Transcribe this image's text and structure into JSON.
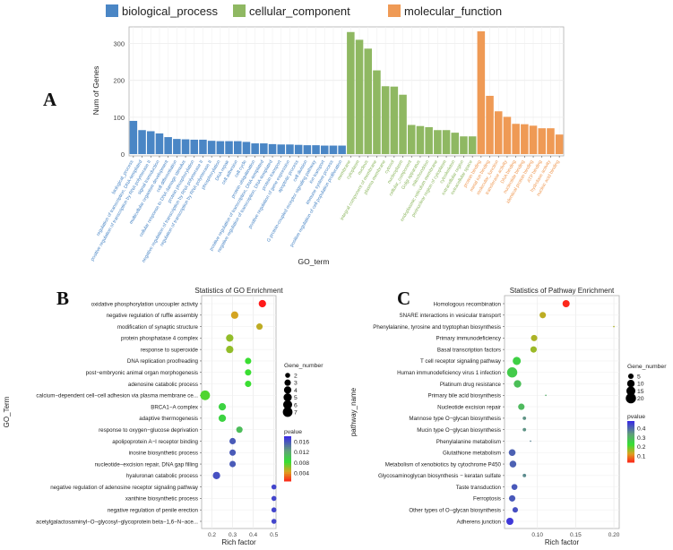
{
  "colors": {
    "biological_process": "#4a86c5",
    "cellular_component": "#8fb862",
    "molecular_function": "#ef9a55",
    "pvalue_low": "#ff1a1a",
    "pvalue_high": "#3b2fe0"
  },
  "chart_data": [
    {
      "panel": "A",
      "type": "bar",
      "legend": [
        "biological_process",
        "cellular_component",
        "molecular_function"
      ],
      "legend_placement": "top",
      "xlabel": "GO_term",
      "ylabel": "Num of Genes",
      "ylim": [
        0,
        345
      ],
      "yticks": [
        0,
        100,
        200,
        300
      ],
      "grid": true,
      "groups": [
        {
          "name": "biological_process",
          "categories": [
            "biological_process",
            "regulation of transcription, DNA-templated",
            "positive regulation of transcription by RNA polymerase II",
            "signal transduction",
            "multicellular organism development",
            "cell differentiation",
            "cellular response to DNA damage stimulus",
            "protein phosphorylation",
            "negative regulation of transcription by RNA polymerase II",
            "regulation of transcription by RNA polymerase II",
            "phosphorylation",
            "DNA repair",
            "cell adhesion",
            "cell cycle",
            "protein ubiquitination",
            "positive regulation of transcription, DNA-templated",
            "negative regulation of transcription, DNA-templated",
            "protein transport",
            "positive regulation of gene expression",
            "apoptotic process",
            "cell division",
            "G protein-coupled receptor signaling pathway",
            "ion transport",
            "immune system process",
            "positive regulation of cell population proliferation"
          ],
          "values": [
            90,
            65,
            62,
            56,
            46,
            41,
            40,
            39,
            39,
            36,
            35,
            35,
            35,
            33,
            29,
            29,
            27,
            26,
            26,
            25,
            24,
            24,
            23,
            23,
            23
          ]
        },
        {
          "name": "cellular_component",
          "categories": [
            "membrane",
            "cytoplasm",
            "nucleus",
            "integral component of membrane",
            "plasma membrane",
            "cytosol",
            "nucleoplasm",
            "cellular_component",
            "Golgi apparatus",
            "mitochondrion",
            "endoplasmic reticulum membrane",
            "perinuclear region of cytoplasm",
            "cytoskeleton",
            "extracellular region",
            "extracellular space"
          ],
          "values": [
            331,
            310,
            286,
            227,
            184,
            183,
            161,
            79,
            76,
            73,
            65,
            65,
            58,
            48,
            48
          ]
        },
        {
          "name": "molecular_function",
          "categories": [
            "protein binding",
            "metal ion binding",
            "molecular_function",
            "transferase activity",
            "DNA binding",
            "nucleotide binding",
            "identical protein binding",
            "ATP binding",
            "hydrolase activity",
            "nucleic acid binding"
          ],
          "values": [
            333,
            158,
            116,
            101,
            82,
            81,
            77,
            70,
            70,
            53
          ]
        }
      ]
    },
    {
      "panel": "B",
      "type": "scatter",
      "title": "Statistics of GO Enrichment",
      "xlabel": "Rich factor",
      "ylabel": "GO_Term",
      "xlim": [
        0.15,
        0.51
      ],
      "xticks": [
        "0.2",
        "0.3",
        "0.4",
        "0.5"
      ],
      "xtick_values": [
        0.2,
        0.3,
        0.4,
        0.5
      ],
      "size_legend": {
        "title": "Gene_number",
        "values": [
          2,
          3,
          4,
          5,
          6,
          7
        ]
      },
      "color_legend": {
        "title": "pvalue",
        "range": [
          0.001,
          0.018
        ],
        "ticks": [
          "0.016",
          "0.012",
          "0.008",
          "0.004"
        ],
        "tick_values": [
          0.016,
          0.012,
          0.008,
          0.004
        ]
      },
      "points": [
        {
          "term": "oxidative phosphorylation uncoupler activity",
          "rich_factor": 0.444,
          "gene_number": 4,
          "pvalue": 0.001
        },
        {
          "term": "negative regulation of ruffle assembly",
          "rich_factor": 0.31,
          "gene_number": 4,
          "pvalue": 0.005
        },
        {
          "term": "modification of synaptic structure",
          "rich_factor": 0.43,
          "gene_number": 3,
          "pvalue": 0.0055
        },
        {
          "term": "protein phosphatase 4 complex",
          "rich_factor": 0.286,
          "gene_number": 4,
          "pvalue": 0.0065
        },
        {
          "term": "response to superoxide",
          "rich_factor": 0.286,
          "gene_number": 4,
          "pvalue": 0.0065
        },
        {
          "term": "DNA replication proofreading",
          "rich_factor": 0.375,
          "gene_number": 3,
          "pvalue": 0.0085
        },
        {
          "term": "post−embryonic animal organ morphogenesis",
          "rich_factor": 0.375,
          "gene_number": 3,
          "pvalue": 0.0085
        },
        {
          "term": "adenosine catabolic process",
          "rich_factor": 0.375,
          "gene_number": 3,
          "pvalue": 0.0085
        },
        {
          "term": "calcium−dependent cell−cell adhesion via plasma membrane ce...",
          "rich_factor": 0.167,
          "gene_number": 7,
          "pvalue": 0.008
        },
        {
          "term": "BRCA1−A complex",
          "rich_factor": 0.25,
          "gene_number": 4,
          "pvalue": 0.0095
        },
        {
          "term": "adaptive thermogenesis",
          "rich_factor": 0.25,
          "gene_number": 4,
          "pvalue": 0.0095
        },
        {
          "term": "response to oxygen−glucose deprivation",
          "rich_factor": 0.333,
          "gene_number": 3,
          "pvalue": 0.011
        },
        {
          "term": "apolipoprotein A−I receptor binding",
          "rich_factor": 0.3,
          "gene_number": 3,
          "pvalue": 0.016
        },
        {
          "term": "inosine biosynthetic process",
          "rich_factor": 0.3,
          "gene_number": 3,
          "pvalue": 0.016
        },
        {
          "term": "nucleotide−excision repair, DNA gap filling",
          "rich_factor": 0.3,
          "gene_number": 3,
          "pvalue": 0.016
        },
        {
          "term": "hyaluronan catabolic process",
          "rich_factor": 0.222,
          "gene_number": 4,
          "pvalue": 0.0165
        },
        {
          "term": "negative regulation of adenosine receptor signaling pathway",
          "rich_factor": 0.5,
          "gene_number": 2,
          "pvalue": 0.017
        },
        {
          "term": "xanthine biosynthetic process",
          "rich_factor": 0.5,
          "gene_number": 2,
          "pvalue": 0.017
        },
        {
          "term": "negative regulation of penile erection",
          "rich_factor": 0.5,
          "gene_number": 2,
          "pvalue": 0.017
        },
        {
          "term": "acetylgalactosaminyl−O−glycosyl−glycoprotein beta−1,6−N−ace...",
          "rich_factor": 0.5,
          "gene_number": 2,
          "pvalue": 0.017
        }
      ]
    },
    {
      "panel": "C",
      "type": "scatter",
      "title": "Statistics of Pathway Enrichment",
      "xlabel": "Rich factor",
      "ylabel": "pathway_name",
      "xlim": [
        0.057,
        0.207
      ],
      "xticks": [
        "0.10",
        "0.15",
        "0.20"
      ],
      "xtick_values": [
        0.1,
        0.15,
        0.2
      ],
      "size_legend": {
        "title": "Gene_number",
        "values": [
          5,
          10,
          15,
          20
        ]
      },
      "color_legend": {
        "title": "pvalue",
        "range": [
          0.03,
          0.48
        ],
        "ticks": [
          "0.4",
          "0.3",
          "0.2",
          "0.1"
        ],
        "tick_values": [
          0.4,
          0.3,
          0.2,
          0.1
        ]
      },
      "points": [
        {
          "term": "Homologous recombination",
          "rich_factor": 0.1375,
          "gene_number": 9,
          "pvalue": 0.04
        },
        {
          "term": "SNARE interactions in vesicular transport",
          "rich_factor": 0.107,
          "gene_number": 7,
          "pvalue": 0.15
        },
        {
          "term": "Phenylalanine, tyrosine and tryptophan biosynthesis",
          "rich_factor": 0.2,
          "gene_number": 1,
          "pvalue": 0.16
        },
        {
          "term": "Primary immunodeficiency",
          "rich_factor": 0.0957,
          "gene_number": 7,
          "pvalue": 0.16
        },
        {
          "term": "Basal transcription factors",
          "rich_factor": 0.095,
          "gene_number": 7,
          "pvalue": 0.17
        },
        {
          "term": "T cell receptor signaling pathway",
          "rich_factor": 0.073,
          "gene_number": 12,
          "pvalue": 0.26
        },
        {
          "term": "Human immunodeficiency virus 1 infection",
          "rich_factor": 0.067,
          "gene_number": 20,
          "pvalue": 0.27
        },
        {
          "term": "Platinum drug resistance",
          "rich_factor": 0.074,
          "gene_number": 10,
          "pvalue": 0.29
        },
        {
          "term": "Primary bile acid biosynthesis",
          "rich_factor": 0.111,
          "gene_number": 1,
          "pvalue": 0.32
        },
        {
          "term": "Nucleotide excision repair",
          "rich_factor": 0.079,
          "gene_number": 7,
          "pvalue": 0.3
        },
        {
          "term": "Mannose type O−glycan biosynthesis",
          "rich_factor": 0.083,
          "gene_number": 2,
          "pvalue": 0.36
        },
        {
          "term": "Mucin type O−glycan biosynthesis",
          "rich_factor": 0.083,
          "gene_number": 2,
          "pvalue": 0.36
        },
        {
          "term": "Phenylalanine metabolism",
          "rich_factor": 0.091,
          "gene_number": 1,
          "pvalue": 0.38
        },
        {
          "term": "Glutathione metabolism",
          "rich_factor": 0.067,
          "gene_number": 8,
          "pvalue": 0.42
        },
        {
          "term": "Metabolism of xenobiotics by cytochrome P450",
          "rich_factor": 0.068,
          "gene_number": 8,
          "pvalue": 0.42
        },
        {
          "term": "Glycosaminoglycan biosynthesis − keratan sulfate",
          "rich_factor": 0.083,
          "gene_number": 2,
          "pvalue": 0.37
        },
        {
          "term": "Taste transduction",
          "rich_factor": 0.07,
          "gene_number": 6,
          "pvalue": 0.43
        },
        {
          "term": "Ferroptosis",
          "rich_factor": 0.067,
          "gene_number": 7,
          "pvalue": 0.43
        },
        {
          "term": "Other types of O−glycan biosynthesis",
          "rich_factor": 0.071,
          "gene_number": 5,
          "pvalue": 0.44
        },
        {
          "term": "Adherens junction",
          "rich_factor": 0.064,
          "gene_number": 9,
          "pvalue": 0.47
        }
      ]
    }
  ]
}
